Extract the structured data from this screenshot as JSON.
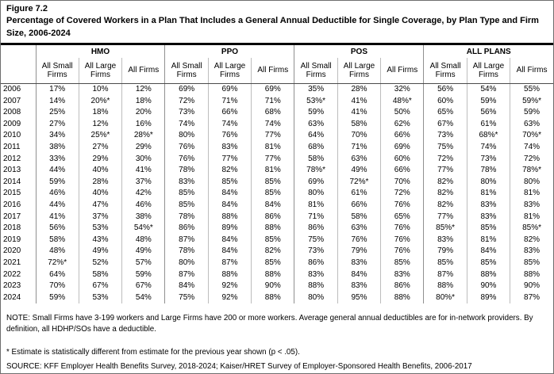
{
  "figure": {
    "label": "Figure 7.2",
    "title": "Percentage of Covered Workers in a Plan That Includes a General Annual Deductible for Single Coverage, by Plan Type and Firm Size, 2006-2024"
  },
  "table": {
    "groups": [
      {
        "label": "HMO"
      },
      {
        "label": "PPO"
      },
      {
        "label": "POS"
      },
      {
        "label": "ALL PLANS"
      }
    ],
    "subheaders": [
      "All Small Firms",
      "All Large Firms",
      "All Firms"
    ],
    "rows": [
      {
        "year": "2006",
        "values": [
          "17%",
          "10%",
          "12%",
          "69%",
          "69%",
          "69%",
          "35%",
          "28%",
          "32%",
          "56%",
          "54%",
          "55%"
        ]
      },
      {
        "year": "2007",
        "values": [
          "14%",
          "20%*",
          "18%",
          "72%",
          "71%",
          "71%",
          "53%*",
          "41%",
          "48%*",
          "60%",
          "59%",
          "59%*"
        ]
      },
      {
        "year": "2008",
        "values": [
          "25%",
          "18%",
          "20%",
          "73%",
          "66%",
          "68%",
          "59%",
          "41%",
          "50%",
          "65%",
          "56%",
          "59%"
        ]
      },
      {
        "year": "2009",
        "values": [
          "27%",
          "12%",
          "16%",
          "74%",
          "74%",
          "74%",
          "63%",
          "58%",
          "62%",
          "67%",
          "61%",
          "63%"
        ]
      },
      {
        "year": "2010",
        "values": [
          "34%",
          "25%*",
          "28%*",
          "80%",
          "76%",
          "77%",
          "64%",
          "70%",
          "66%",
          "73%",
          "68%*",
          "70%*"
        ]
      },
      {
        "year": "2011",
        "values": [
          "38%",
          "27%",
          "29%",
          "76%",
          "83%",
          "81%",
          "68%",
          "71%",
          "69%",
          "75%",
          "74%",
          "74%"
        ]
      },
      {
        "year": "2012",
        "values": [
          "33%",
          "29%",
          "30%",
          "76%",
          "77%",
          "77%",
          "58%",
          "63%",
          "60%",
          "72%",
          "73%",
          "72%"
        ]
      },
      {
        "year": "2013",
        "values": [
          "44%",
          "40%",
          "41%",
          "78%",
          "82%",
          "81%",
          "78%*",
          "49%",
          "66%",
          "77%",
          "78%",
          "78%*"
        ]
      },
      {
        "year": "2014",
        "values": [
          "59%",
          "28%",
          "37%",
          "83%",
          "85%",
          "85%",
          "69%",
          "72%*",
          "70%",
          "82%",
          "80%",
          "80%"
        ]
      },
      {
        "year": "2015",
        "values": [
          "46%",
          "40%",
          "42%",
          "85%",
          "84%",
          "85%",
          "80%",
          "61%",
          "72%",
          "82%",
          "81%",
          "81%"
        ]
      },
      {
        "year": "2016",
        "values": [
          "44%",
          "47%",
          "46%",
          "85%",
          "84%",
          "84%",
          "81%",
          "66%",
          "76%",
          "82%",
          "83%",
          "83%"
        ]
      },
      {
        "year": "2017",
        "values": [
          "41%",
          "37%",
          "38%",
          "78%",
          "88%",
          "86%",
          "71%",
          "58%",
          "65%",
          "77%",
          "83%",
          "81%"
        ]
      },
      {
        "year": "2018",
        "values": [
          "56%",
          "53%",
          "54%*",
          "86%",
          "89%",
          "88%",
          "86%",
          "63%",
          "76%",
          "85%*",
          "85%",
          "85%*"
        ]
      },
      {
        "year": "2019",
        "values": [
          "58%",
          "43%",
          "48%",
          "87%",
          "84%",
          "85%",
          "75%",
          "76%",
          "76%",
          "83%",
          "81%",
          "82%"
        ]
      },
      {
        "year": "2020",
        "values": [
          "48%",
          "49%",
          "49%",
          "78%",
          "84%",
          "82%",
          "73%",
          "79%",
          "76%",
          "79%",
          "84%",
          "83%"
        ]
      },
      {
        "year": "2021",
        "values": [
          "72%*",
          "52%",
          "57%",
          "80%",
          "87%",
          "85%",
          "86%",
          "83%",
          "85%",
          "85%",
          "85%",
          "85%"
        ]
      },
      {
        "year": "2022",
        "values": [
          "64%",
          "58%",
          "59%",
          "87%",
          "88%",
          "88%",
          "83%",
          "84%",
          "83%",
          "87%",
          "88%",
          "88%"
        ]
      },
      {
        "year": "2023",
        "values": [
          "70%",
          "67%",
          "67%",
          "84%",
          "92%",
          "90%",
          "88%",
          "83%",
          "86%",
          "88%",
          "90%",
          "90%"
        ]
      },
      {
        "year": "2024",
        "values": [
          "59%",
          "53%",
          "54%",
          "75%",
          "92%",
          "88%",
          "80%",
          "95%",
          "88%",
          "80%*",
          "89%",
          "87%"
        ]
      }
    ]
  },
  "notes": {
    "note": "NOTE: Small Firms have 3-199 workers and Large Firms have 200 or more workers. Average general annual deductibles are for in-network providers. By definition, all HDHP/SOs have a deductible.",
    "footnote": "* Estimate is statistically different from estimate for the previous year shown (p < .05).",
    "source": "SOURCE: KFF Employer Health Benefits Survey, 2018-2024; Kaiser/HRET Survey of Employer-Sponsored Health Benefits, 2006-2017"
  }
}
